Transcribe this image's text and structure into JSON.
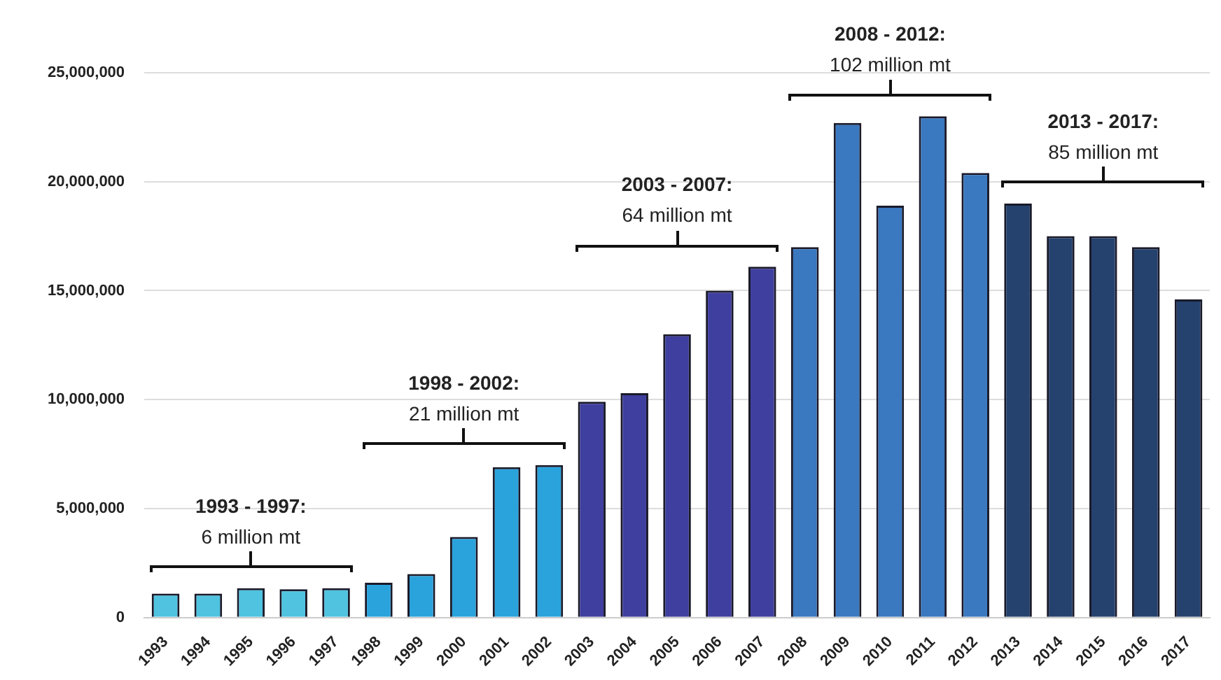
{
  "chart_data": {
    "type": "bar",
    "categories": [
      "1993",
      "1994",
      "1995",
      "1996",
      "1997",
      "1998",
      "1999",
      "2000",
      "2001",
      "2002",
      "2003",
      "2004",
      "2005",
      "2006",
      "2007",
      "2008",
      "2009",
      "2010",
      "2011",
      "2012",
      "2013",
      "2014",
      "2015",
      "2016",
      "2017"
    ],
    "values": [
      1100000,
      1100000,
      1350000,
      1300000,
      1350000,
      1600000,
      2000000,
      3700000,
      6900000,
      7000000,
      9900000,
      10300000,
      13000000,
      15000000,
      16100000,
      17000000,
      22700000,
      18900000,
      23000000,
      20400000,
      19000000,
      17500000,
      17500000,
      17000000,
      14600000
    ],
    "colors": [
      "#4fc3e0",
      "#4fc3e0",
      "#4fc3e0",
      "#4fc3e0",
      "#4fc3e0",
      "#2aa3dc",
      "#2aa3dc",
      "#2aa3dc",
      "#2aa3dc",
      "#2aa3dc",
      "#3f3f9f",
      "#3f3f9f",
      "#3f3f9f",
      "#3f3f9f",
      "#3f3f9f",
      "#3a78c0",
      "#3a78c0",
      "#3a78c0",
      "#3a78c0",
      "#3a78c0",
      "#25426e",
      "#25426e",
      "#25426e",
      "#25426e",
      "#25426e"
    ],
    "ylim": [
      0,
      25000000
    ],
    "yticks": [
      {
        "value": 0,
        "label": "0"
      },
      {
        "value": 5000000,
        "label": "5,000,000"
      },
      {
        "value": 10000000,
        "label": "10,000,000"
      },
      {
        "value": 15000000,
        "label": "15,000,000"
      },
      {
        "value": 20000000,
        "label": "20,000,000"
      },
      {
        "value": 25000000,
        "label": "25,000,000"
      }
    ],
    "grid": "y",
    "legend": false,
    "annotations": [
      "1993 - 1997:\n6 million mt",
      "1998 - 2002:\n21 million mt",
      "2003 - 2007:\n64 million mt",
      "2008 - 2012:\n102 million mt",
      "2013 - 2017:\n85 million mt"
    ]
  }
}
